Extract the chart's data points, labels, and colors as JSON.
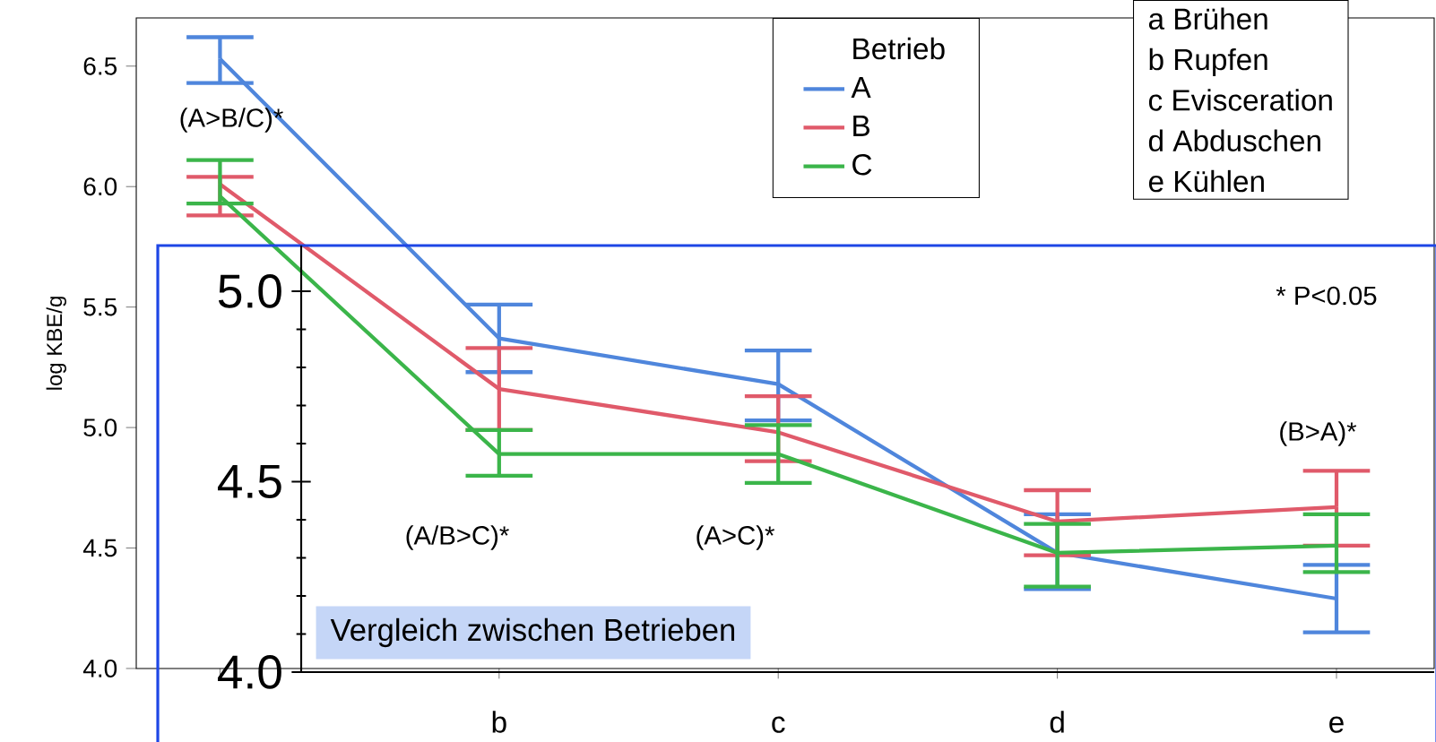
{
  "chart_data": {
    "type": "line",
    "ylabel": "log KBE/g",
    "legend_title": "Betrieb",
    "legend": "top",
    "line_style": "solid",
    "categories": [
      null,
      "b",
      "c",
      "d",
      "e"
    ],
    "ylim": [
      4.0,
      6.7
    ],
    "yticks": [
      {
        "value": 4.0,
        "label": "4.0"
      },
      4.5,
      {
        "value": 5.0,
        "label": "5.0"
      },
      5.5,
      {
        "value": 6.0,
        "label": "6.0"
      },
      6.5
    ],
    "y2lim": [
      4.0,
      5.12
    ],
    "y2ticks": [
      {
        "value": 4.0,
        "label": "4.0"
      },
      4.5,
      {
        "value": 5.0,
        "label": "5.0"
      }
    ],
    "series": [
      {
        "name": "A",
        "color": "#4f86dc",
        "values": [
          6.53,
          5.37,
          5.18,
          4.48,
          4.29
        ],
        "errors": [
          [
            6.43,
            6.62
          ],
          [
            5.23,
            5.51
          ],
          [
            5.03,
            5.32
          ],
          [
            4.33,
            4.64
          ],
          [
            4.15,
            4.43
          ]
        ]
      },
      {
        "name": "B",
        "color": "#e05a6a",
        "values": [
          6.01,
          5.16,
          4.98,
          4.61,
          4.67
        ],
        "errors": [
          [
            5.88,
            6.04
          ],
          [
            4.99,
            5.33
          ],
          [
            4.86,
            5.13
          ],
          [
            4.47,
            4.74
          ],
          [
            4.51,
            4.82
          ]
        ]
      },
      {
        "name": "C",
        "color": "#3bb54a",
        "values": [
          5.96,
          4.89,
          4.89,
          4.48,
          4.51
        ],
        "errors": [
          [
            5.93,
            6.11
          ],
          [
            4.8,
            4.99
          ],
          [
            4.77,
            5.01
          ],
          [
            4.34,
            4.6
          ],
          [
            4.4,
            4.64
          ]
        ]
      }
    ],
    "annotations": [
      "(A>B/C)*",
      "(A/B>C)*",
      "(A>C)*",
      "(B>A)*",
      "* P<0.05",
      "Vergleich zwischen Betrieben",
      "a  Brühen",
      "b  Rupfen",
      "c  Evisceration",
      "d  Abduschen",
      "e  Kühlen"
    ]
  }
}
